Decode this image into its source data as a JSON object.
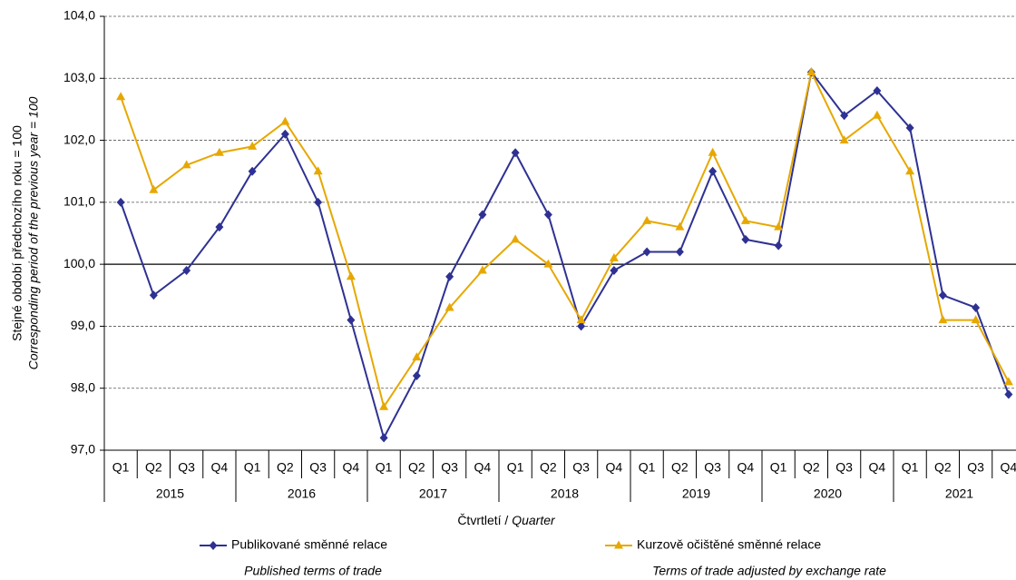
{
  "chart_data": {
    "type": "line",
    "y_label": "Stejné období předchozího roku = 100",
    "y_label_en": "Corresponding period of the previous year = 100",
    "x_label": [
      "Čtvrtletí / ",
      "Quarter"
    ],
    "categories": [
      "Q1",
      "Q2",
      "Q3",
      "Q4",
      "Q1",
      "Q2",
      "Q3",
      "Q4",
      "Q1",
      "Q2",
      "Q3",
      "Q4",
      "Q1",
      "Q2",
      "Q3",
      "Q4",
      "Q1",
      "Q2",
      "Q3",
      "Q4",
      "Q1",
      "Q2",
      "Q3",
      "Q4",
      "Q1",
      "Q2",
      "Q3",
      "Q4"
    ],
    "category_groups": [
      "2015",
      "2016",
      "2017",
      "2018",
      "2019",
      "2020",
      "2021"
    ],
    "ylim": [
      97,
      104
    ],
    "yticks": [
      {
        "value": 97,
        "label": "97,0"
      },
      {
        "value": 98,
        "label": "98,0"
      },
      {
        "value": 99,
        "label": "99,0"
      },
      {
        "value": 100,
        "label": "100,0"
      },
      {
        "value": 101,
        "label": "101,0"
      },
      {
        "value": 102,
        "label": "102,0"
      },
      {
        "value": 103,
        "label": "103,0"
      },
      {
        "value": 104,
        "label": "104,0"
      }
    ],
    "grid": true,
    "series": [
      {
        "name": "Publikované směnné relace",
        "name_en": "Published terms of trade",
        "color": "#2e3192",
        "marker": "diamond",
        "values": [
          101.0,
          99.5,
          99.9,
          100.6,
          101.5,
          102.1,
          101.0,
          99.1,
          97.2,
          98.2,
          99.8,
          100.8,
          101.8,
          100.8,
          99.0,
          99.9,
          100.2,
          100.2,
          101.5,
          100.4,
          100.3,
          103.1,
          102.4,
          102.8,
          102.2,
          99.5,
          99.3,
          97.9
        ]
      },
      {
        "name": "Kurzově očištěné směnné relace",
        "name_en": "Terms of trade adjusted by exchange rate",
        "color": "#e6a800",
        "marker": "triangle",
        "values": [
          102.7,
          101.2,
          101.6,
          101.8,
          101.9,
          102.3,
          101.5,
          99.8,
          97.7,
          98.5,
          99.3,
          99.9,
          100.4,
          100.0,
          99.1,
          100.1,
          100.7,
          100.6,
          101.8,
          100.7,
          100.6,
          103.1,
          102.0,
          102.4,
          101.5,
          99.1,
          99.1,
          98.1
        ]
      }
    ]
  }
}
